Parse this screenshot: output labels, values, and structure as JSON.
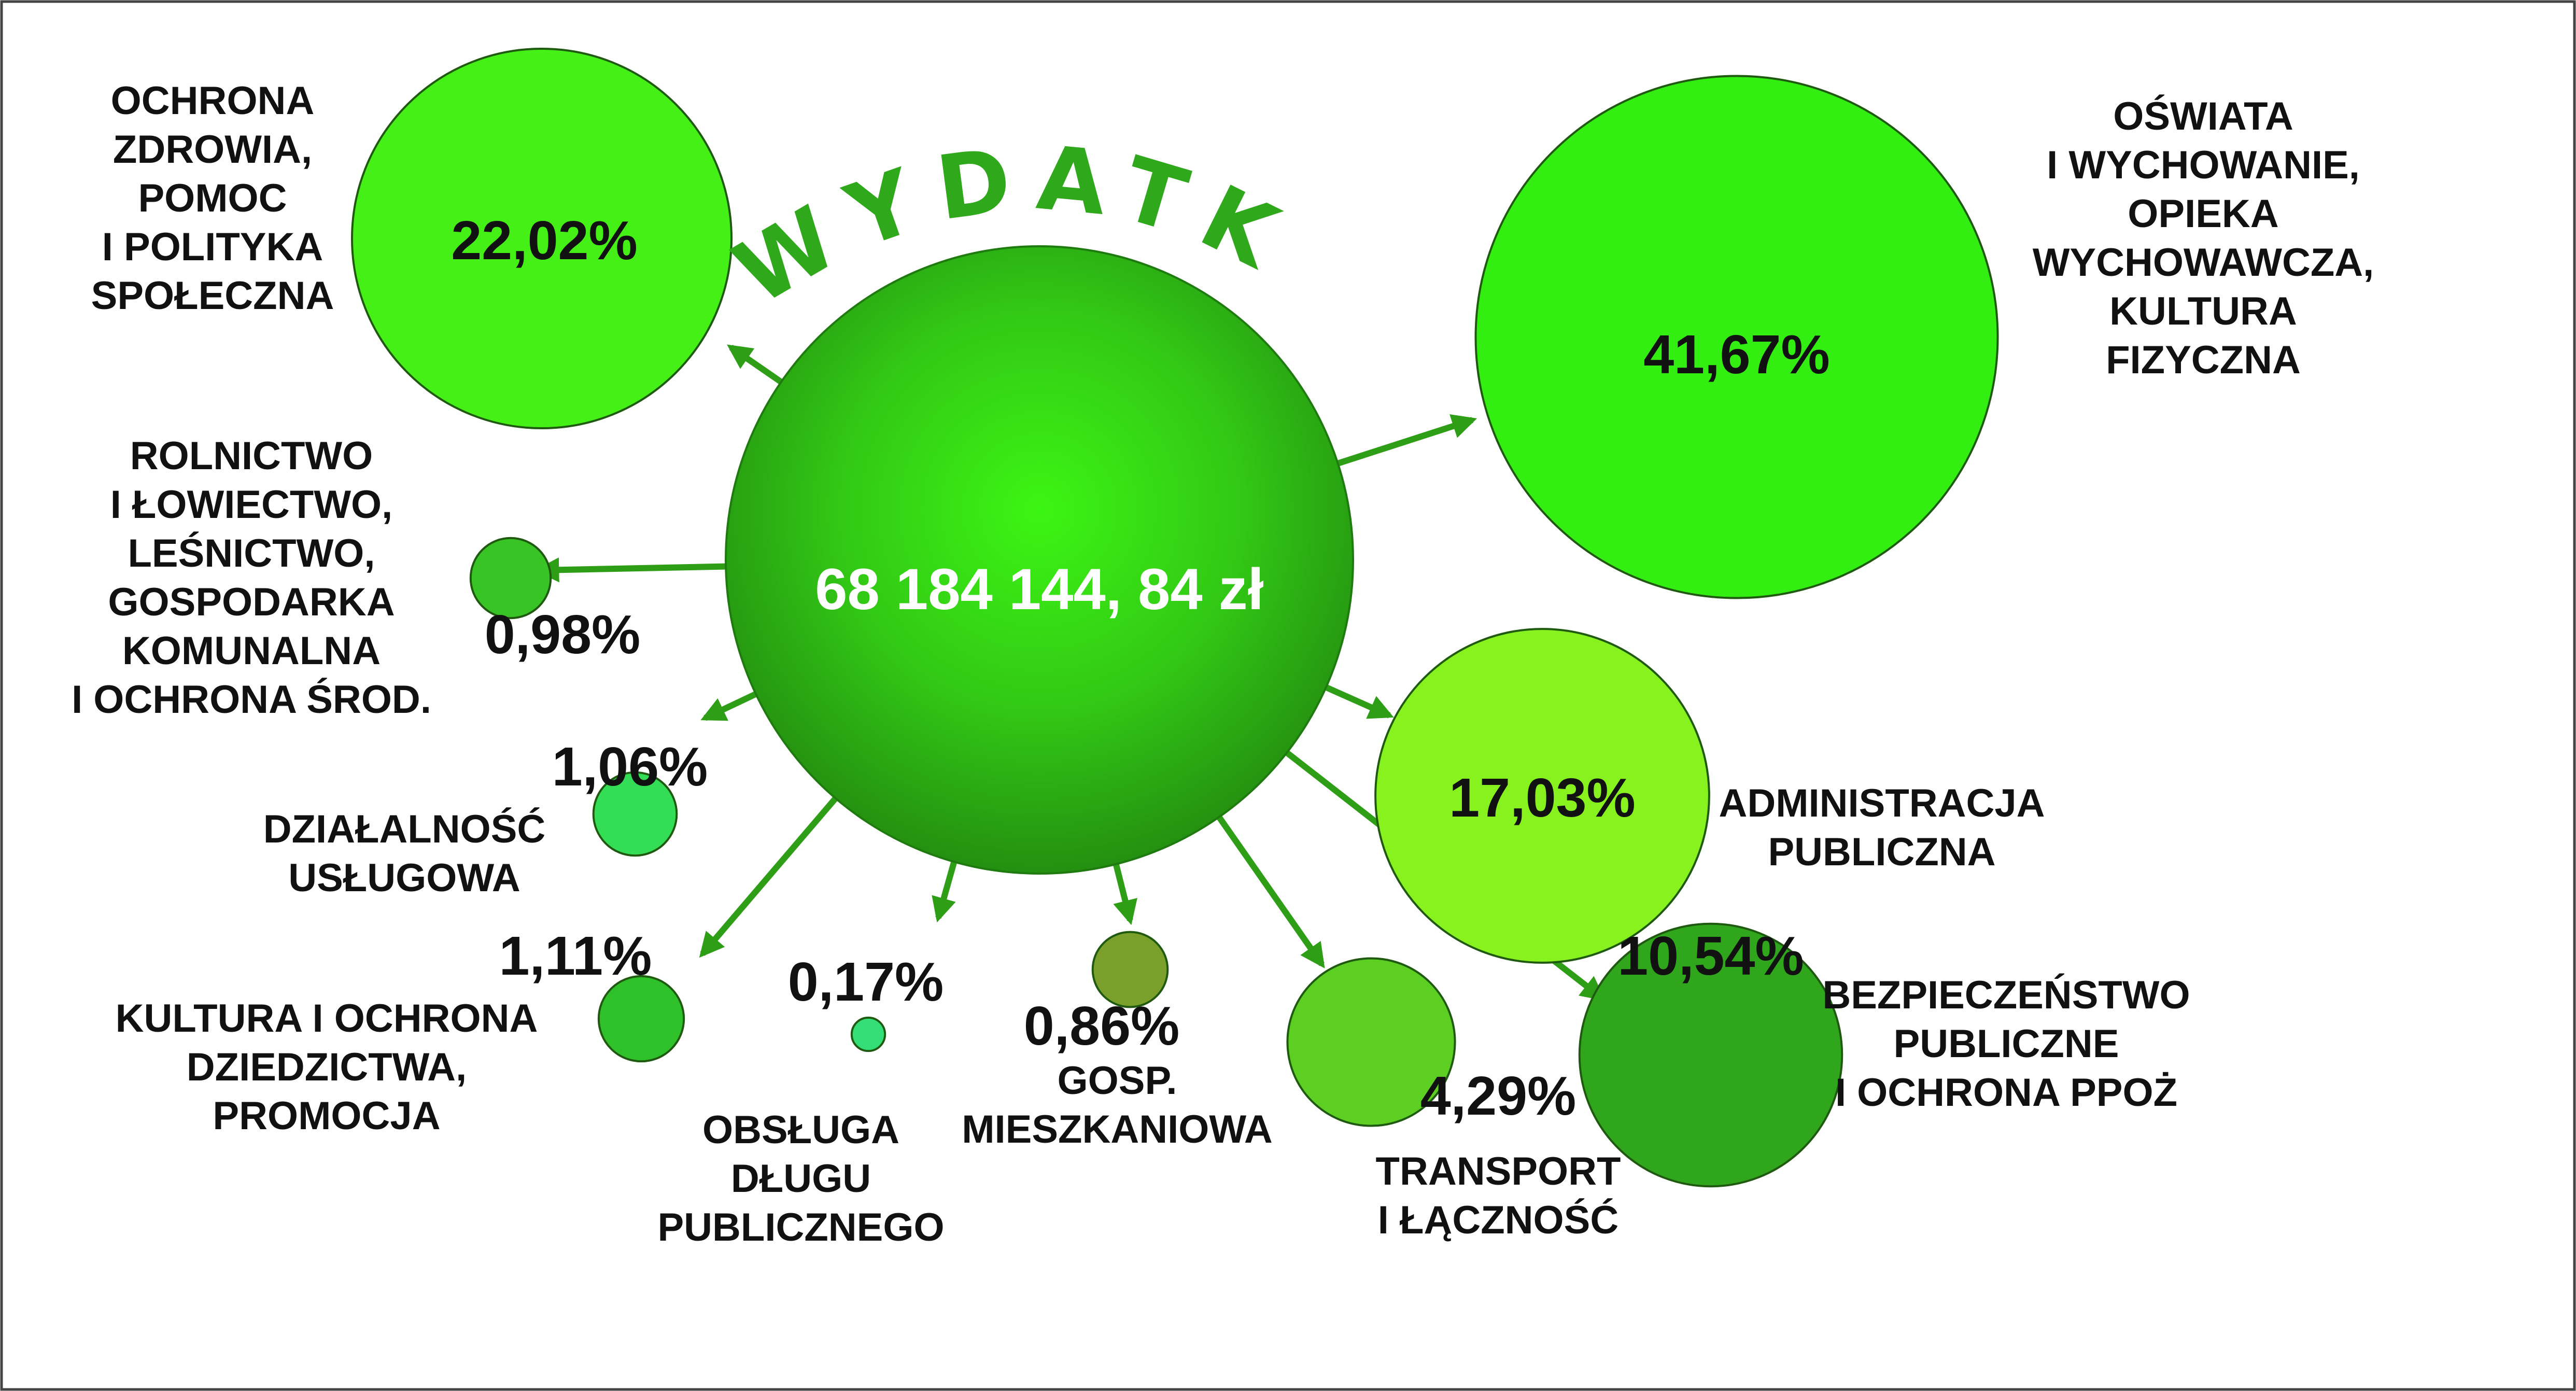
{
  "chart_data": {
    "type": "bubble",
    "title": "WYDATKI",
    "total": "68 184 144, 84 zł",
    "categories": [
      {
        "label": "OŚWIATA\nI WYCHOWANIE,\nOPIEKA\nWYCHOWAWCZA,\nKULTURA\nFIZYCZNA",
        "value": 41.67,
        "value_text": "41,67%",
        "color": "#33ee11"
      },
      {
        "label": "OCHRONA\nZDROWIA,\nPOMOC\nI POLITYKA\nSPOŁECZNA",
        "value": 22.02,
        "value_text": "22,02%",
        "color": "#44f016"
      },
      {
        "label": "ADMINISTRACJA\nPUBLICZNA",
        "value": 17.03,
        "value_text": "17,03%",
        "color": "#88f21f"
      },
      {
        "label": "BEZPIECZEŃSTWO\nPUBLICZNE\nI OCHRONA PPOŻ",
        "value": 10.54,
        "value_text": "10,54%",
        "color": "#2fa61b"
      },
      {
        "label": "TRANSPORT\nI ŁĄCZNOŚĆ",
        "value": 4.29,
        "value_text": "4,29%",
        "color": "#5ccf22"
      },
      {
        "label": "KULTURA I OCHRONA\nDZIEDZICTWA,\nPROMOCJA",
        "value": 1.11,
        "value_text": "1,11%",
        "color": "#2ec12a"
      },
      {
        "label": "DZIAŁALNOŚĆ\nUSŁUGOWA",
        "value": 1.06,
        "value_text": "1,06%",
        "color": "#33dd55"
      },
      {
        "label": "ROLNICTWO\nI ŁOWIECTWO,\nLEŚNICTWO,\nGOSPODARKA\nKOMUNALNA\nI OCHRONA ŚROD.",
        "value": 0.98,
        "value_text": "0,98%",
        "color": "#39c426"
      },
      {
        "label": "GOSP.\nMIESZKANIOWA",
        "value": 0.86,
        "value_text": "0,86%",
        "color": "#7a9f2a"
      },
      {
        "label": "OBSŁUGA\nDŁUGU\nPUBLICZNEGO",
        "value": 0.17,
        "value_text": "0,17%",
        "color": "#33dd77"
      }
    ]
  }
}
